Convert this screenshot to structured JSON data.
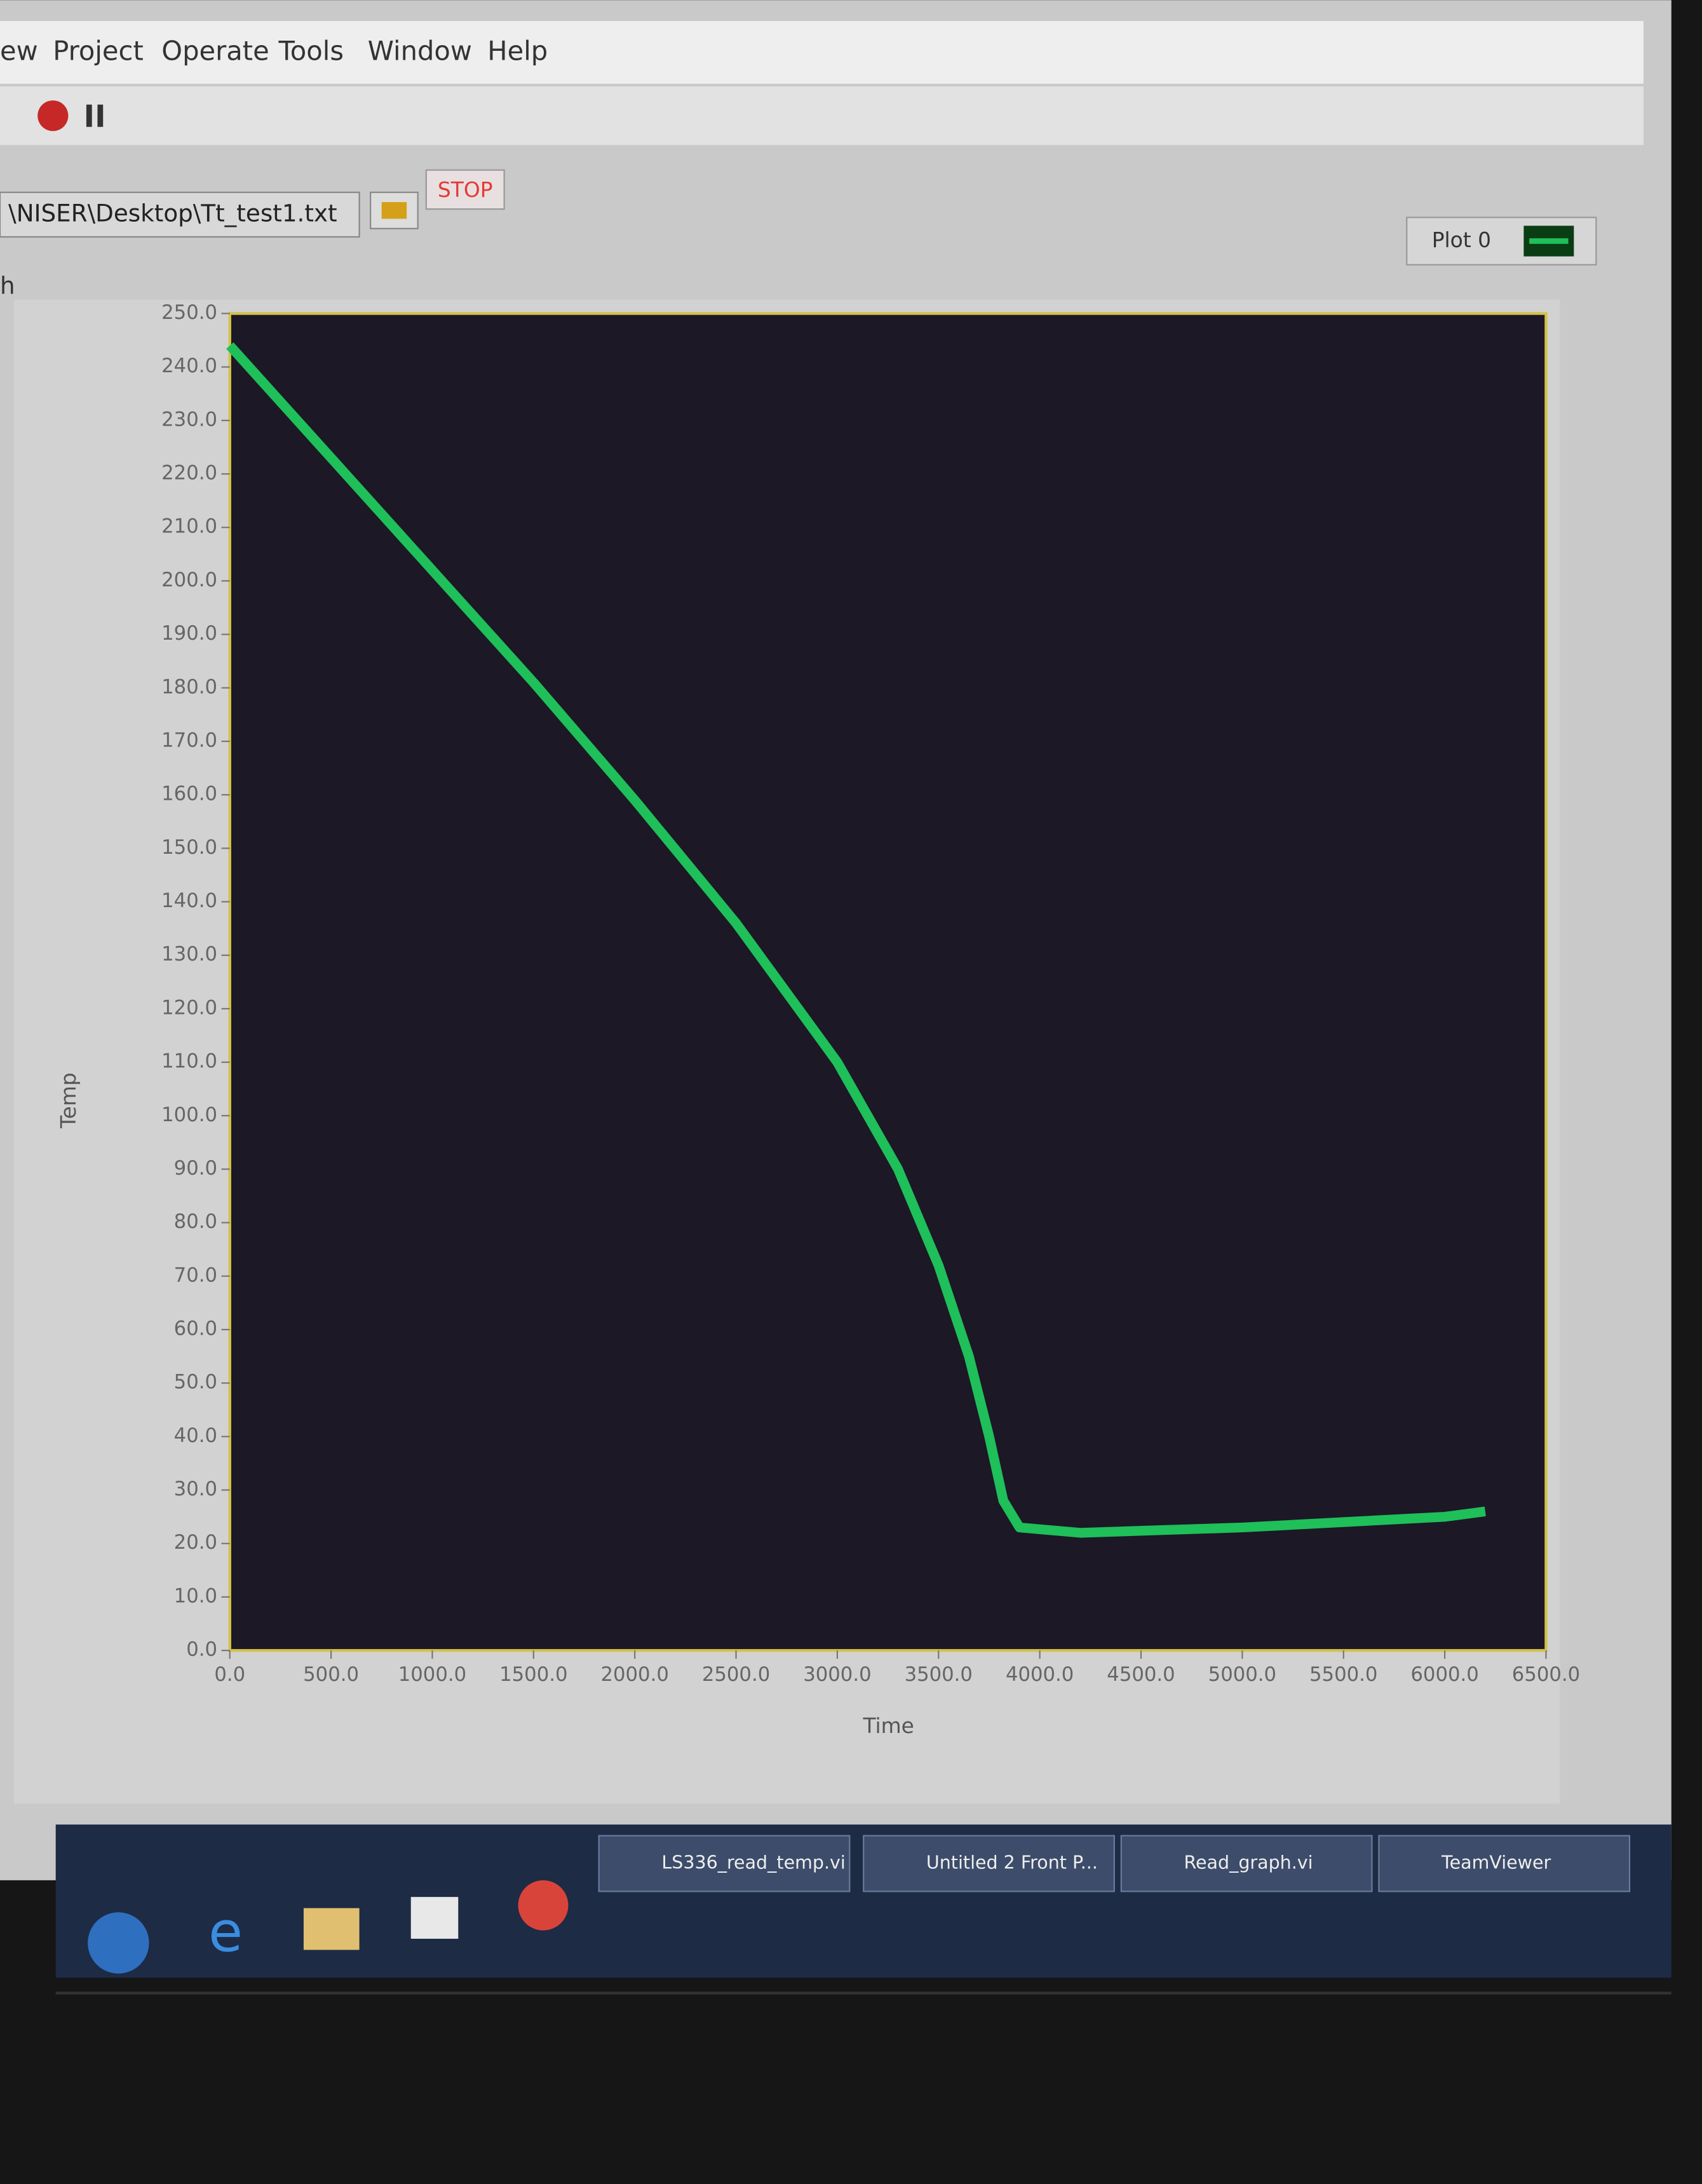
{
  "menu": [
    "ew",
    "Project",
    "Operate",
    "Tools",
    "Window",
    "Help"
  ],
  "file_path": "\\NISER\\Desktop\\Tt_test1.txt",
  "stop_button": "STOP",
  "graph_name": "h",
  "taskbar": [
    "LS336_read_temp.vi",
    "Untitled 2 Front P...",
    "Read_graph.vi",
    "TeamViewer"
  ],
  "chart_data": {
    "type": "line",
    "x_label": "Time",
    "y_label": "Temp",
    "x": [
      0,
      500,
      1000,
      1500,
      2000,
      2500,
      3000,
      3300,
      3500,
      3650,
      3750,
      3820,
      3900,
      4200,
      5000,
      5500,
      6000,
      6200
    ],
    "series": [
      {
        "name": "Plot 0",
        "color": "#1fbf5a",
        "values": [
          244,
          223,
          202,
          181,
          159,
          136,
          110,
          90,
          72,
          55,
          40,
          28,
          23,
          22,
          23,
          24,
          25,
          26
        ]
      }
    ],
    "xlim": [
      0,
      6500
    ],
    "ylim": [
      0,
      250
    ],
    "xticks": [
      {
        "value": 0,
        "label": "0.0"
      },
      {
        "value": 500,
        "label": "500.0"
      },
      {
        "value": 1000,
        "label": "1000.0"
      },
      {
        "value": 1500,
        "label": "1500.0"
      },
      {
        "value": 2000,
        "label": "2000.0"
      },
      {
        "value": 2500,
        "label": "2500.0"
      },
      {
        "value": 3000,
        "label": "3000.0"
      },
      {
        "value": 3500,
        "label": "3500.0"
      },
      {
        "value": 4000,
        "label": "4000.0"
      },
      {
        "value": 4500,
        "label": "4500.0"
      },
      {
        "value": 5000,
        "label": "5000.0"
      },
      {
        "value": 5500,
        "label": "5500.0"
      },
      {
        "value": 6000,
        "label": "6000.0"
      },
      {
        "value": 6500,
        "label": "6500.0"
      }
    ],
    "yticks": [
      {
        "value": 0,
        "label": "0.0"
      },
      {
        "value": 10,
        "label": "10.0"
      },
      {
        "value": 20,
        "label": "20.0"
      },
      {
        "value": 30,
        "label": "30.0"
      },
      {
        "value": 40,
        "label": "40.0"
      },
      {
        "value": 50,
        "label": "50.0"
      },
      {
        "value": 60,
        "label": "60.0"
      },
      {
        "value": 70,
        "label": "70.0"
      },
      {
        "value": 80,
        "label": "80.0"
      },
      {
        "value": 90,
        "label": "90.0"
      },
      {
        "value": 100,
        "label": "100.0"
      },
      {
        "value": 110,
        "label": "110.0"
      },
      {
        "value": 120,
        "label": "120.0"
      },
      {
        "value": 130,
        "label": "130.0"
      },
      {
        "value": 140,
        "label": "140.0"
      },
      {
        "value": 150,
        "label": "150.0"
      },
      {
        "value": 160,
        "label": "160.0"
      },
      {
        "value": 170,
        "label": "170.0"
      },
      {
        "value": 180,
        "label": "180.0"
      },
      {
        "value": 190,
        "label": "190.0"
      },
      {
        "value": 200,
        "label": "200.0"
      },
      {
        "value": 210,
        "label": "210.0"
      },
      {
        "value": 220,
        "label": "220.0"
      },
      {
        "value": 230,
        "label": "230.0"
      },
      {
        "value": 240,
        "label": "240.0"
      },
      {
        "value": 250,
        "label": "250.0"
      }
    ],
    "legend": "top-right",
    "grid": false
  }
}
